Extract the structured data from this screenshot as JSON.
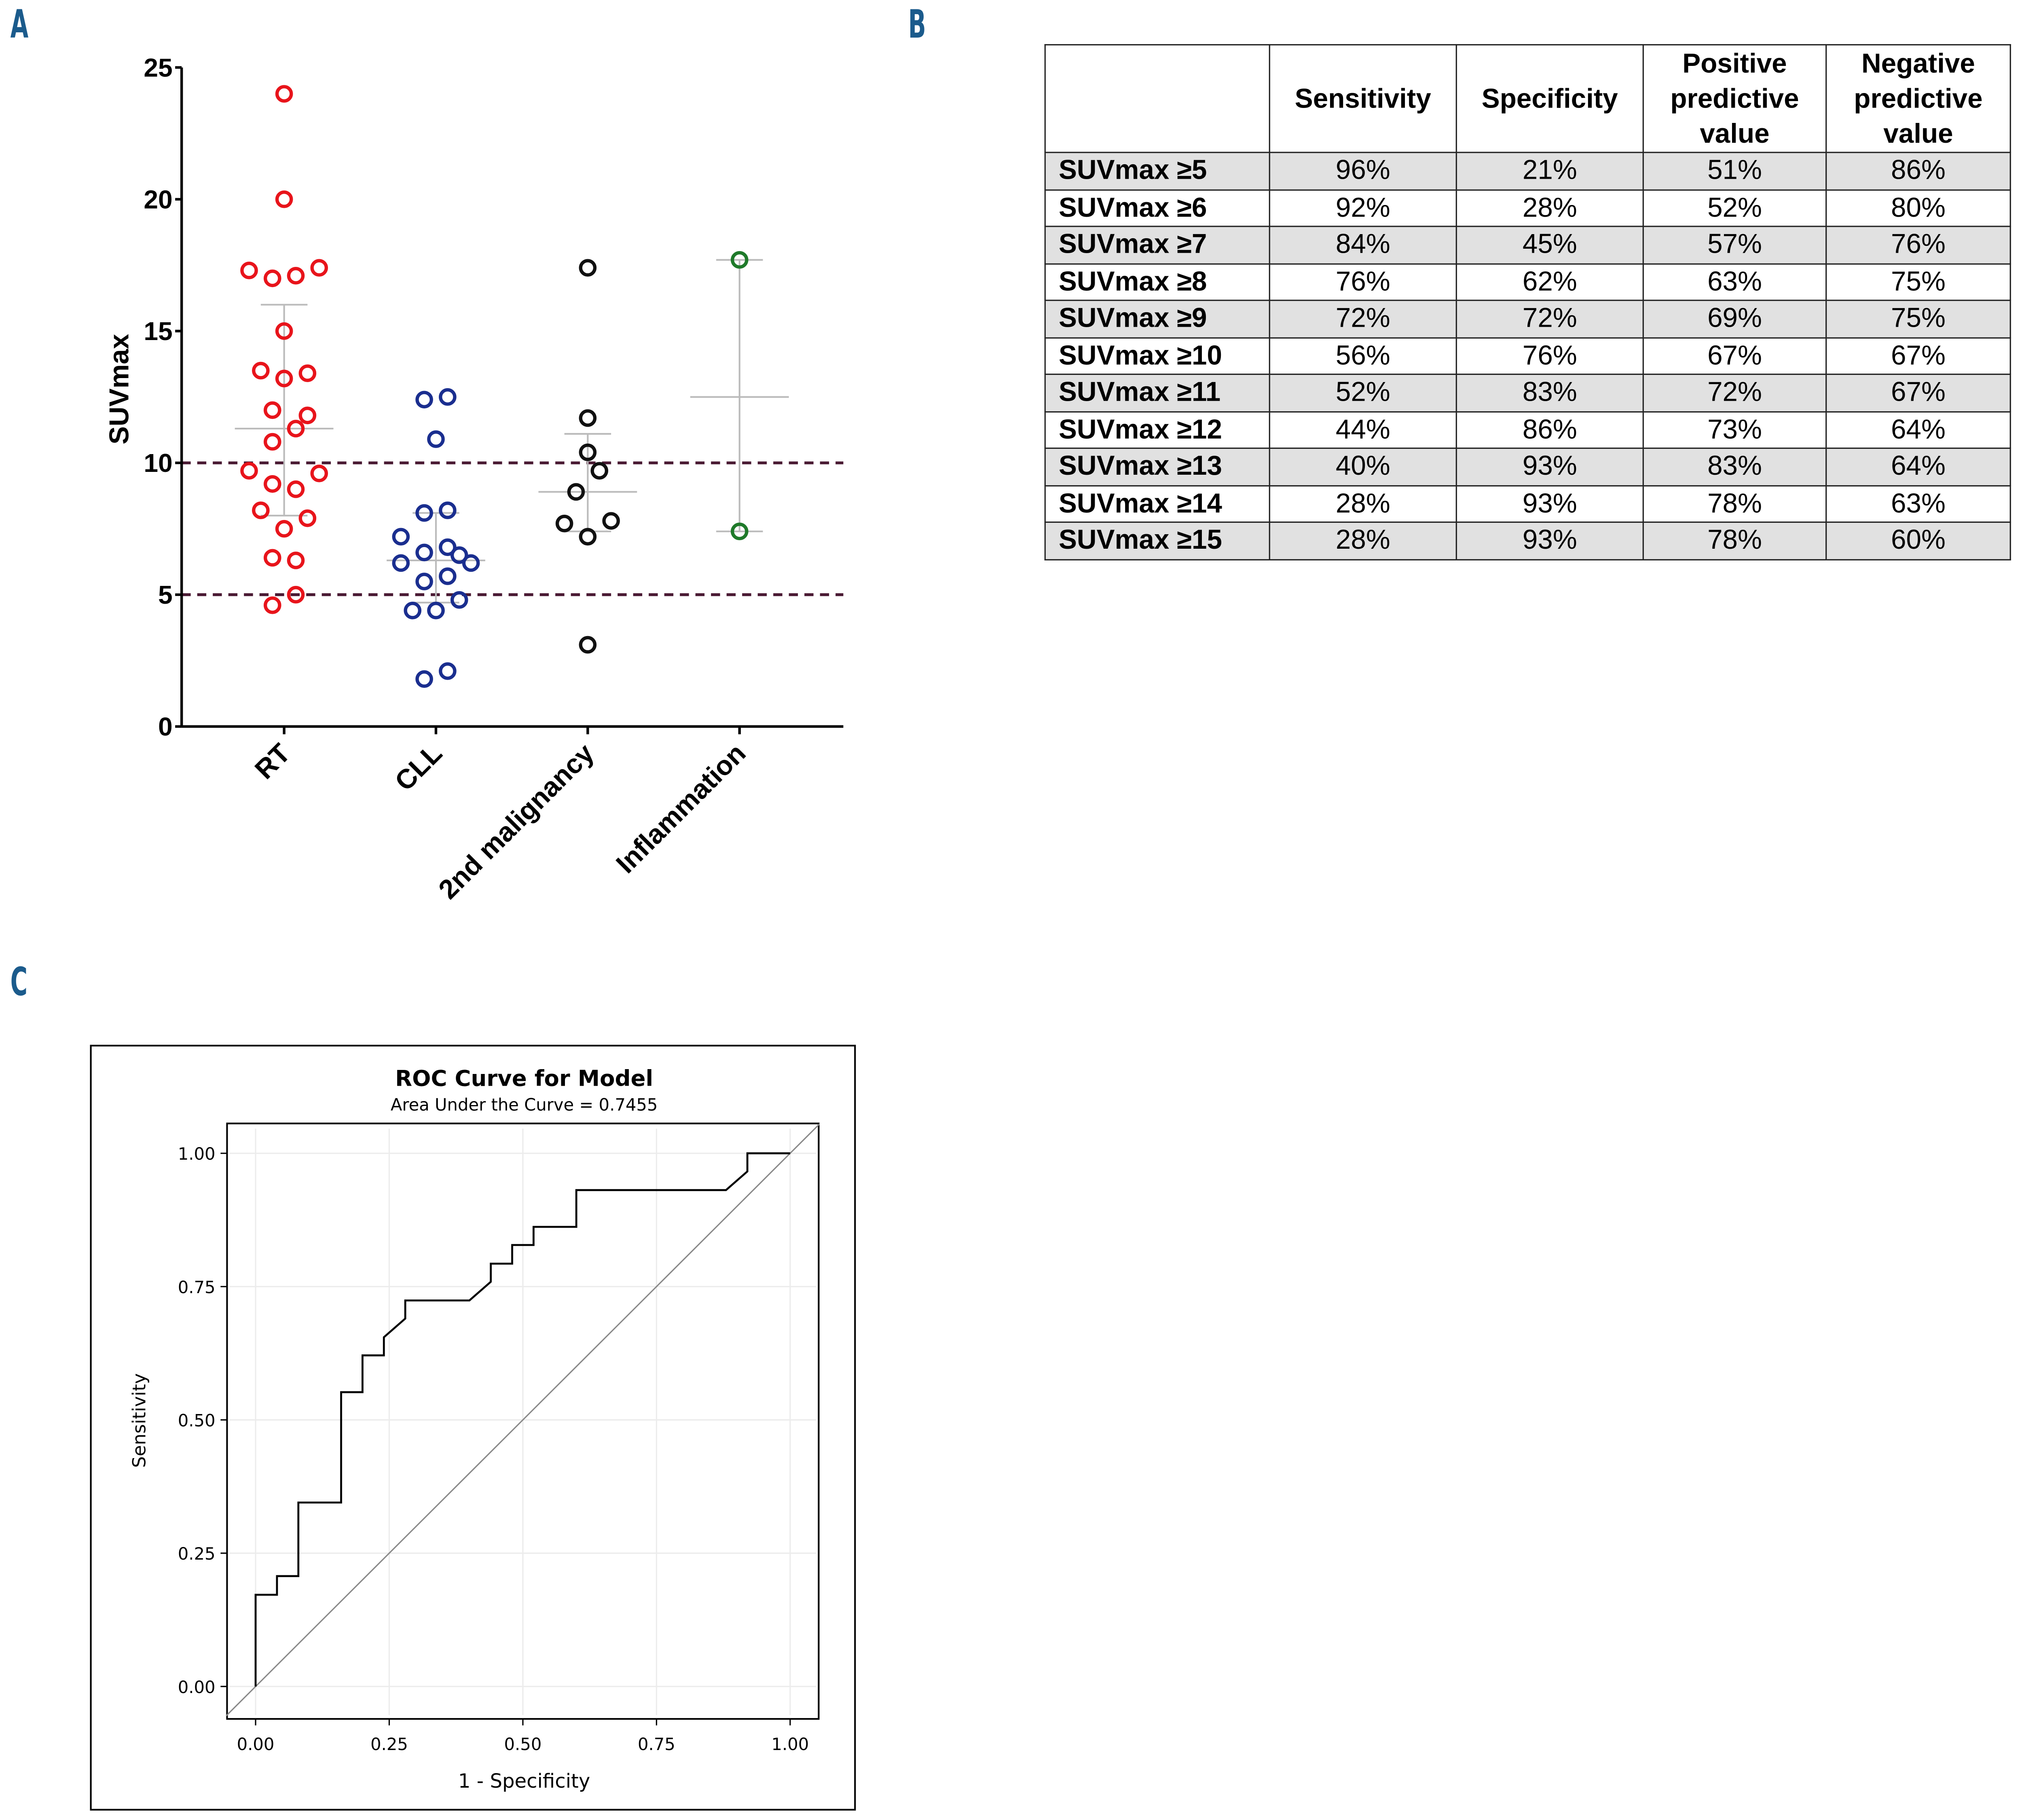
{
  "panels": {
    "a": "A",
    "b": "B",
    "c": "C"
  },
  "chart_data": [
    {
      "type": "scatter",
      "title": "",
      "ylabel": "SUVmax",
      "ylim": [
        0,
        25
      ],
      "yticks": [
        "0",
        "5",
        "10",
        "15",
        "20",
        "25"
      ],
      "categories": [
        "RT",
        "CLL",
        "2nd malignancy",
        "Inflammation"
      ],
      "colors": [
        "#e8141b",
        "#1a2e8f",
        "#111111",
        "#1f7a2a"
      ],
      "reference_lines": [
        5,
        10
      ],
      "series": [
        {
          "name": "RT",
          "values": [
            24,
            20,
            17.3,
            17.0,
            17.1,
            17.4,
            15,
            13.5,
            13.2,
            13.4,
            12,
            11.8,
            11.3,
            10.8,
            9.7,
            9.2,
            9.0,
            9.6,
            8.2,
            7.5,
            7.9,
            6.4,
            6.3,
            5.0,
            4.6
          ],
          "mean": 11.3,
          "err": [
            8.0,
            16.0
          ]
        },
        {
          "name": "CLL",
          "values": [
            12.4,
            12.5,
            10.9,
            8.1,
            8.2,
            7.2,
            6.6,
            6.8,
            6.5,
            6.2,
            6.2,
            5.5,
            5.7,
            4.4,
            4.4,
            4.8,
            1.8,
            2.1
          ],
          "mean": 6.3,
          "err": [
            4.7,
            8.1
          ]
        },
        {
          "name": "2nd malignancy",
          "values": [
            17.4,
            11.7,
            10.4,
            9.7,
            8.9,
            7.7,
            7.8,
            7.2,
            3.1
          ],
          "mean": 8.9,
          "err": [
            7.4,
            11.1
          ]
        },
        {
          "name": "Inflammation",
          "values": [
            17.7,
            7.4
          ],
          "mean": 12.5,
          "err": [
            7.4,
            17.7
          ]
        }
      ]
    },
    {
      "type": "table",
      "headers": [
        "",
        "Sensitivity",
        "Specificity",
        "Positive predictive value",
        "Negative predictive value"
      ],
      "rows": [
        [
          "SUVmax ≥5",
          "96%",
          "21%",
          "51%",
          "86%"
        ],
        [
          "SUVmax ≥6",
          "92%",
          "28%",
          "52%",
          "80%"
        ],
        [
          "SUVmax ≥7",
          "84%",
          "45%",
          "57%",
          "76%"
        ],
        [
          "SUVmax ≥8",
          "76%",
          "62%",
          "63%",
          "75%"
        ],
        [
          "SUVmax ≥9",
          "72%",
          "72%",
          "69%",
          "75%"
        ],
        [
          "SUVmax ≥10",
          "56%",
          "76%",
          "67%",
          "67%"
        ],
        [
          "SUVmax ≥11",
          "52%",
          "83%",
          "72%",
          "67%"
        ],
        [
          "SUVmax ≥12",
          "44%",
          "86%",
          "73%",
          "64%"
        ],
        [
          "SUVmax ≥13",
          "40%",
          "93%",
          "83%",
          "64%"
        ],
        [
          "SUVmax ≥14",
          "28%",
          "93%",
          "78%",
          "63%"
        ],
        [
          "SUVmax ≥15",
          "28%",
          "93%",
          "78%",
          "60%"
        ]
      ]
    },
    {
      "type": "line",
      "title": "ROC Curve for Model",
      "subtitle": "Area Under the Curve = 0.7455",
      "xlabel": "1 - Specificity",
      "ylabel": "Sensitivity",
      "xlim": [
        0,
        1
      ],
      "ylim": [
        0,
        1
      ],
      "xticks": [
        "0.00",
        "0.25",
        "0.50",
        "0.75",
        "1.00"
      ],
      "yticks": [
        "0.00",
        "0.25",
        "0.50",
        "0.75",
        "1.00"
      ],
      "grid": true,
      "series": [
        {
          "name": "ROC",
          "points": [
            [
              0,
              0
            ],
            [
              0,
              0.172
            ],
            [
              0.04,
              0.172
            ],
            [
              0.04,
              0.207
            ],
            [
              0.08,
              0.207
            ],
            [
              0.08,
              0.345
            ],
            [
              0.16,
              0.345
            ],
            [
              0.16,
              0.552
            ],
            [
              0.2,
              0.552
            ],
            [
              0.2,
              0.621
            ],
            [
              0.24,
              0.621
            ],
            [
              0.24,
              0.655
            ],
            [
              0.28,
              0.69
            ],
            [
              0.28,
              0.724
            ],
            [
              0.4,
              0.724
            ],
            [
              0.44,
              0.759
            ],
            [
              0.44,
              0.793
            ],
            [
              0.48,
              0.793
            ],
            [
              0.48,
              0.828
            ],
            [
              0.52,
              0.828
            ],
            [
              0.52,
              0.862
            ],
            [
              0.6,
              0.862
            ],
            [
              0.6,
              0.931
            ],
            [
              0.88,
              0.931
            ],
            [
              0.92,
              0.966
            ],
            [
              0.92,
              1
            ],
            [
              1,
              1
            ]
          ]
        },
        {
          "name": "Reference",
          "points": [
            [
              0,
              0
            ],
            [
              1,
              1
            ]
          ]
        }
      ]
    }
  ]
}
